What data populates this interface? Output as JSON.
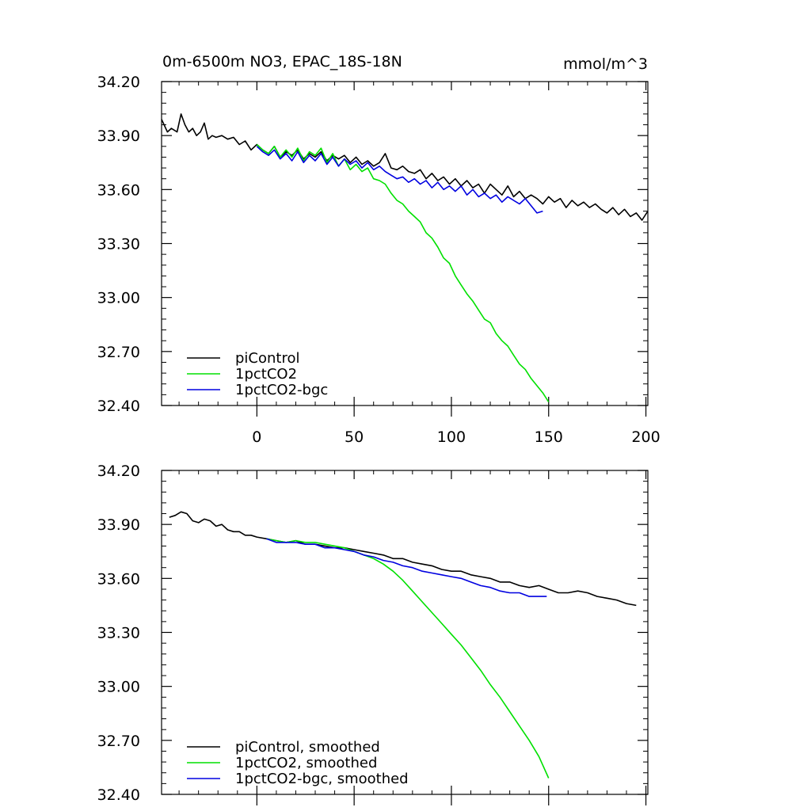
{
  "chart_data": [
    {
      "type": "line",
      "title": "0m-6500m NO3, EPAC_18S-18N",
      "units": "mmol/m^3",
      "xlabel": "",
      "ylabel": "",
      "xlim": [
        -49,
        201
      ],
      "ylim": [
        32.4,
        34.2
      ],
      "xticks": [
        "0",
        "50",
        "100",
        "150",
        "200"
      ],
      "yticks": [
        "34.20",
        "33.90",
        "33.60",
        "33.30",
        "33.00",
        "32.70",
        "32.40"
      ],
      "legend_position": "bottom-left",
      "series": [
        {
          "name": "piControl",
          "color": "#000000",
          "x": [
            -49,
            -46,
            -44,
            -41,
            -39,
            -37,
            -35,
            -33,
            -31,
            -29,
            -27,
            -25,
            -23,
            -21,
            -18,
            -15,
            -12,
            -9,
            -6,
            -3,
            0,
            3,
            6,
            9,
            12,
            15,
            18,
            21,
            24,
            27,
            30,
            33,
            36,
            39,
            42,
            45,
            48,
            51,
            54,
            57,
            60,
            63,
            66,
            69,
            72,
            75,
            78,
            81,
            84,
            87,
            90,
            93,
            96,
            99,
            102,
            105,
            108,
            111,
            114,
            117,
            120,
            123,
            126,
            129,
            132,
            135,
            138,
            141,
            144,
            147,
            150,
            153,
            156,
            159,
            162,
            165,
            168,
            171,
            174,
            177,
            180,
            183,
            186,
            189,
            192,
            195,
            198,
            201
          ],
          "values": [
            33.99,
            33.92,
            33.94,
            33.92,
            34.02,
            33.96,
            33.92,
            33.94,
            33.9,
            33.92,
            33.97,
            33.88,
            33.9,
            33.89,
            33.9,
            33.88,
            33.89,
            33.85,
            33.87,
            33.82,
            33.85,
            33.82,
            33.8,
            33.84,
            33.78,
            33.81,
            33.79,
            33.82,
            33.77,
            33.8,
            33.78,
            33.81,
            33.76,
            33.79,
            33.77,
            33.79,
            33.75,
            33.78,
            33.74,
            33.76,
            33.73,
            33.75,
            33.8,
            33.72,
            33.71,
            33.73,
            33.7,
            33.69,
            33.71,
            33.66,
            33.69,
            33.65,
            33.67,
            33.63,
            33.66,
            33.62,
            33.65,
            33.61,
            33.63,
            33.58,
            33.63,
            33.6,
            33.57,
            33.62,
            33.56,
            33.59,
            33.55,
            33.57,
            33.55,
            33.52,
            33.56,
            33.53,
            33.55,
            33.5,
            33.54,
            33.51,
            33.53,
            33.5,
            33.52,
            33.49,
            33.47,
            33.5,
            33.46,
            33.49,
            33.45,
            33.47,
            33.43,
            33.48
          ]
        },
        {
          "name": "1pctCO2",
          "color": "#00e000",
          "x": [
            0,
            3,
            6,
            9,
            12,
            15,
            18,
            21,
            24,
            27,
            30,
            33,
            36,
            39,
            42,
            45,
            48,
            51,
            54,
            57,
            60,
            63,
            66,
            69,
            72,
            75,
            78,
            81,
            84,
            87,
            90,
            93,
            96,
            99,
            102,
            105,
            108,
            111,
            114,
            117,
            120,
            123,
            126,
            129,
            132,
            135,
            138,
            141,
            144,
            147,
            150
          ],
          "values": [
            33.85,
            33.82,
            33.8,
            33.84,
            33.78,
            33.82,
            33.78,
            33.83,
            33.76,
            33.81,
            33.79,
            33.83,
            33.75,
            33.8,
            33.73,
            33.77,
            33.71,
            33.74,
            33.7,
            33.72,
            33.66,
            33.65,
            33.63,
            33.58,
            33.54,
            33.52,
            33.48,
            33.45,
            33.42,
            33.36,
            33.33,
            33.28,
            33.22,
            33.19,
            33.12,
            33.07,
            33.02,
            32.98,
            32.93,
            32.88,
            32.86,
            32.8,
            32.76,
            32.73,
            32.68,
            32.63,
            32.6,
            32.55,
            32.51,
            32.47,
            32.42
          ]
        },
        {
          "name": "1pctCO2-bgc",
          "color": "#0000e0",
          "x": [
            0,
            3,
            6,
            9,
            12,
            15,
            18,
            21,
            24,
            27,
            30,
            33,
            36,
            39,
            42,
            45,
            48,
            51,
            54,
            57,
            60,
            63,
            66,
            69,
            72,
            75,
            78,
            81,
            84,
            87,
            90,
            93,
            96,
            99,
            102,
            105,
            108,
            111,
            114,
            117,
            120,
            123,
            126,
            129,
            132,
            135,
            138,
            141,
            144,
            147
          ],
          "values": [
            33.84,
            33.81,
            33.79,
            33.82,
            33.77,
            33.8,
            33.76,
            33.81,
            33.75,
            33.79,
            33.76,
            33.8,
            33.74,
            33.78,
            33.73,
            33.77,
            33.74,
            33.76,
            33.72,
            33.75,
            33.71,
            33.73,
            33.7,
            33.68,
            33.66,
            33.67,
            33.64,
            33.66,
            33.63,
            33.65,
            33.61,
            33.64,
            33.6,
            33.62,
            33.59,
            33.62,
            33.57,
            33.6,
            33.56,
            33.58,
            33.55,
            33.57,
            33.53,
            33.56,
            33.54,
            33.52,
            33.55,
            33.51,
            33.47,
            33.48
          ]
        }
      ]
    },
    {
      "type": "line",
      "title": "",
      "xlabel": "",
      "ylabel": "",
      "xlim": [
        -49,
        201
      ],
      "ylim": [
        32.4,
        34.2
      ],
      "yticks": [
        "34.20",
        "33.90",
        "33.60",
        "33.30",
        "33.00",
        "32.70",
        "32.40"
      ],
      "legend_position": "bottom-left",
      "series": [
        {
          "name": "piControl, smoothed",
          "color": "#000000",
          "x": [
            -45,
            -42,
            -39,
            -36,
            -33,
            -30,
            -27,
            -24,
            -21,
            -18,
            -15,
            -12,
            -9,
            -6,
            -3,
            0,
            5,
            10,
            15,
            20,
            25,
            30,
            35,
            40,
            45,
            50,
            55,
            60,
            65,
            70,
            75,
            80,
            85,
            90,
            95,
            100,
            105,
            110,
            115,
            120,
            125,
            130,
            135,
            140,
            145,
            150,
            155,
            160,
            165,
            170,
            175,
            180,
            185,
            190,
            195
          ],
          "values": [
            33.94,
            33.95,
            33.97,
            33.96,
            33.92,
            33.91,
            33.93,
            33.92,
            33.89,
            33.9,
            33.87,
            33.86,
            33.86,
            33.84,
            33.84,
            33.83,
            33.82,
            33.81,
            33.8,
            33.81,
            33.79,
            33.79,
            33.78,
            33.77,
            33.77,
            33.76,
            33.75,
            33.74,
            33.73,
            33.71,
            33.71,
            33.69,
            33.68,
            33.67,
            33.65,
            33.64,
            33.64,
            33.62,
            33.61,
            33.6,
            33.58,
            33.58,
            33.56,
            33.55,
            33.56,
            33.54,
            33.52,
            33.52,
            33.53,
            33.52,
            33.5,
            33.49,
            33.48,
            33.46,
            33.45
          ]
        },
        {
          "name": "1pctCO2, smoothed",
          "color": "#00e000",
          "x": [
            5,
            10,
            15,
            20,
            25,
            30,
            35,
            40,
            45,
            50,
            55,
            60,
            65,
            70,
            75,
            80,
            85,
            90,
            95,
            100,
            105,
            110,
            115,
            120,
            125,
            130,
            135,
            140,
            145,
            150
          ],
          "values": [
            33.82,
            33.81,
            33.8,
            33.81,
            33.8,
            33.8,
            33.79,
            33.78,
            33.77,
            33.75,
            33.73,
            33.71,
            33.68,
            33.64,
            33.59,
            33.53,
            33.47,
            33.41,
            33.35,
            33.29,
            33.23,
            33.16,
            33.09,
            33.01,
            32.94,
            32.86,
            32.78,
            32.7,
            32.61,
            32.49
          ]
        },
        {
          "name": "1pctCO2-bgc, smoothed",
          "color": "#0000e0",
          "x": [
            5,
            10,
            15,
            20,
            25,
            30,
            35,
            40,
            45,
            50,
            55,
            60,
            65,
            70,
            75,
            80,
            85,
            90,
            95,
            100,
            105,
            110,
            115,
            120,
            125,
            130,
            135,
            140,
            145,
            149
          ],
          "values": [
            33.82,
            33.8,
            33.8,
            33.8,
            33.79,
            33.79,
            33.77,
            33.77,
            33.76,
            33.75,
            33.73,
            33.72,
            33.7,
            33.69,
            33.67,
            33.66,
            33.64,
            33.63,
            33.62,
            33.61,
            33.6,
            33.58,
            33.56,
            33.55,
            33.53,
            33.52,
            33.52,
            33.5,
            33.5,
            33.5
          ]
        }
      ]
    }
  ]
}
